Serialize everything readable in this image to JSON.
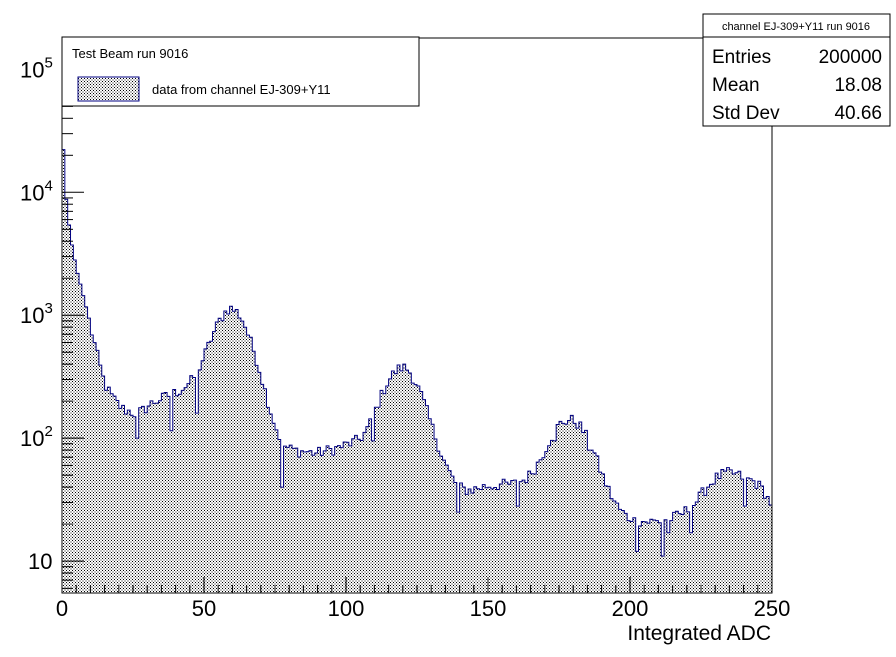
{
  "chart_data": {
    "type": "histogram",
    "title": "",
    "xlabel": "Integrated ADC",
    "ylabel": "",
    "x_range": [
      0,
      250
    ],
    "bin_width": 1,
    "y_scale": "log",
    "y_range": [
      5.5,
      180000
    ],
    "x_ticks": [
      {
        "value": 0,
        "label": "0"
      },
      {
        "value": 50,
        "label": "50"
      },
      {
        "value": 100,
        "label": "100"
      },
      {
        "value": 150,
        "label": "150"
      },
      {
        "value": 200,
        "label": "200"
      },
      {
        "value": 250,
        "label": "250"
      }
    ],
    "y_ticks": [
      {
        "value": 10,
        "base": "10",
        "exp": ""
      },
      {
        "value": 100,
        "base": "10",
        "exp": "2"
      },
      {
        "value": 1000,
        "base": "10",
        "exp": "3"
      },
      {
        "value": 10000,
        "base": "10",
        "exp": "4"
      },
      {
        "value": 100000,
        "base": "10",
        "exp": "5"
      }
    ],
    "grid": false,
    "series": [
      {
        "name": "data from channel EJ-309+Y11",
        "color": "#000080",
        "fill": "dotted",
        "knots": [
          [
            0,
            45000
          ],
          [
            1,
            11000
          ],
          [
            2,
            7000
          ],
          [
            3,
            4200
          ],
          [
            4,
            3300
          ],
          [
            5,
            2400
          ],
          [
            6,
            2000
          ],
          [
            7,
            1600
          ],
          [
            8,
            1300
          ],
          [
            9,
            1050
          ],
          [
            10,
            800
          ],
          [
            11,
            650
          ],
          [
            12,
            520
          ],
          [
            13,
            420
          ],
          [
            14,
            340
          ],
          [
            15,
            280
          ],
          [
            16,
            250
          ],
          [
            17,
            230
          ],
          [
            18,
            210
          ],
          [
            19,
            200
          ],
          [
            20,
            185
          ],
          [
            22,
            170
          ],
          [
            24,
            165
          ],
          [
            26,
            158
          ],
          [
            28,
            165
          ],
          [
            30,
            180
          ],
          [
            32,
            195
          ],
          [
            34,
            205
          ],
          [
            36,
            215
          ],
          [
            38,
            225
          ],
          [
            40,
            235
          ],
          [
            42,
            250
          ],
          [
            44,
            270
          ],
          [
            46,
            300
          ],
          [
            48,
            360
          ],
          [
            50,
            460
          ],
          [
            52,
            600
          ],
          [
            54,
            780
          ],
          [
            56,
            950
          ],
          [
            58,
            1100
          ],
          [
            59,
            1150
          ],
          [
            60,
            1120
          ],
          [
            62,
            1050
          ],
          [
            64,
            880
          ],
          [
            66,
            650
          ],
          [
            68,
            480
          ],
          [
            70,
            330
          ],
          [
            72,
            220
          ],
          [
            74,
            150
          ],
          [
            76,
            110
          ],
          [
            78,
            88
          ],
          [
            80,
            82
          ],
          [
            82,
            80
          ],
          [
            84,
            78
          ],
          [
            86,
            78
          ],
          [
            88,
            76
          ],
          [
            90,
            76
          ],
          [
            92,
            78
          ],
          [
            94,
            80
          ],
          [
            96,
            82
          ],
          [
            98,
            85
          ],
          [
            100,
            88
          ],
          [
            102,
            92
          ],
          [
            104,
            96
          ],
          [
            106,
            105
          ],
          [
            108,
            125
          ],
          [
            110,
            160
          ],
          [
            112,
            210
          ],
          [
            114,
            270
          ],
          [
            116,
            320
          ],
          [
            118,
            360
          ],
          [
            120,
            380
          ],
          [
            122,
            360
          ],
          [
            124,
            300
          ],
          [
            126,
            240
          ],
          [
            128,
            180
          ],
          [
            130,
            130
          ],
          [
            132,
            95
          ],
          [
            134,
            70
          ],
          [
            136,
            55
          ],
          [
            138,
            45
          ],
          [
            140,
            40
          ],
          [
            142,
            38
          ],
          [
            144,
            38
          ],
          [
            146,
            39
          ],
          [
            148,
            40
          ],
          [
            150,
            41
          ],
          [
            152,
            41
          ],
          [
            154,
            42
          ],
          [
            156,
            42
          ],
          [
            158,
            42
          ],
          [
            160,
            43
          ],
          [
            162,
            45
          ],
          [
            164,
            48
          ],
          [
            166,
            55
          ],
          [
            168,
            65
          ],
          [
            170,
            80
          ],
          [
            172,
            100
          ],
          [
            174,
            120
          ],
          [
            176,
            135
          ],
          [
            178,
            140
          ],
          [
            180,
            140
          ],
          [
            182,
            130
          ],
          [
            184,
            110
          ],
          [
            186,
            90
          ],
          [
            188,
            70
          ],
          [
            190,
            52
          ],
          [
            192,
            40
          ],
          [
            194,
            32
          ],
          [
            196,
            27
          ],
          [
            198,
            24
          ],
          [
            200,
            22
          ],
          [
            202,
            21
          ],
          [
            204,
            21
          ],
          [
            206,
            21
          ],
          [
            208,
            21
          ],
          [
            210,
            21
          ],
          [
            212,
            22
          ],
          [
            214,
            22
          ],
          [
            216,
            23
          ],
          [
            218,
            24
          ],
          [
            220,
            26
          ],
          [
            222,
            28
          ],
          [
            224,
            32
          ],
          [
            226,
            37
          ],
          [
            228,
            42
          ],
          [
            230,
            47
          ],
          [
            232,
            50
          ],
          [
            234,
            52
          ],
          [
            236,
            52
          ],
          [
            238,
            50
          ],
          [
            240,
            48
          ],
          [
            242,
            46
          ],
          [
            244,
            44
          ],
          [
            246,
            40
          ],
          [
            248,
            35
          ],
          [
            249,
            30
          ],
          [
            250,
            30
          ]
        ]
      }
    ],
    "dips": [
      [
        26,
        100
      ],
      [
        38,
        115
      ],
      [
        47,
        160
      ],
      [
        77,
        40
      ],
      [
        139,
        25
      ],
      [
        185,
        80
      ],
      [
        200,
        21
      ],
      [
        202,
        12
      ],
      [
        211,
        11
      ],
      [
        213,
        17
      ],
      [
        221,
        17
      ],
      [
        240,
        28
      ],
      [
        160,
        28
      ],
      [
        109,
        95
      ],
      [
        173,
        95
      ]
    ]
  },
  "legend": {
    "header": "Test Beam run 9016",
    "entry_label": "data from channel EJ-309+Y11"
  },
  "stats": {
    "title": "channel EJ-309+Y11  run 9016",
    "rows": [
      {
        "label": "Entries",
        "value": "200000"
      },
      {
        "label": "Mean",
        "value": "18.08"
      },
      {
        "label": "Std Dev",
        "value": "40.66"
      }
    ]
  }
}
